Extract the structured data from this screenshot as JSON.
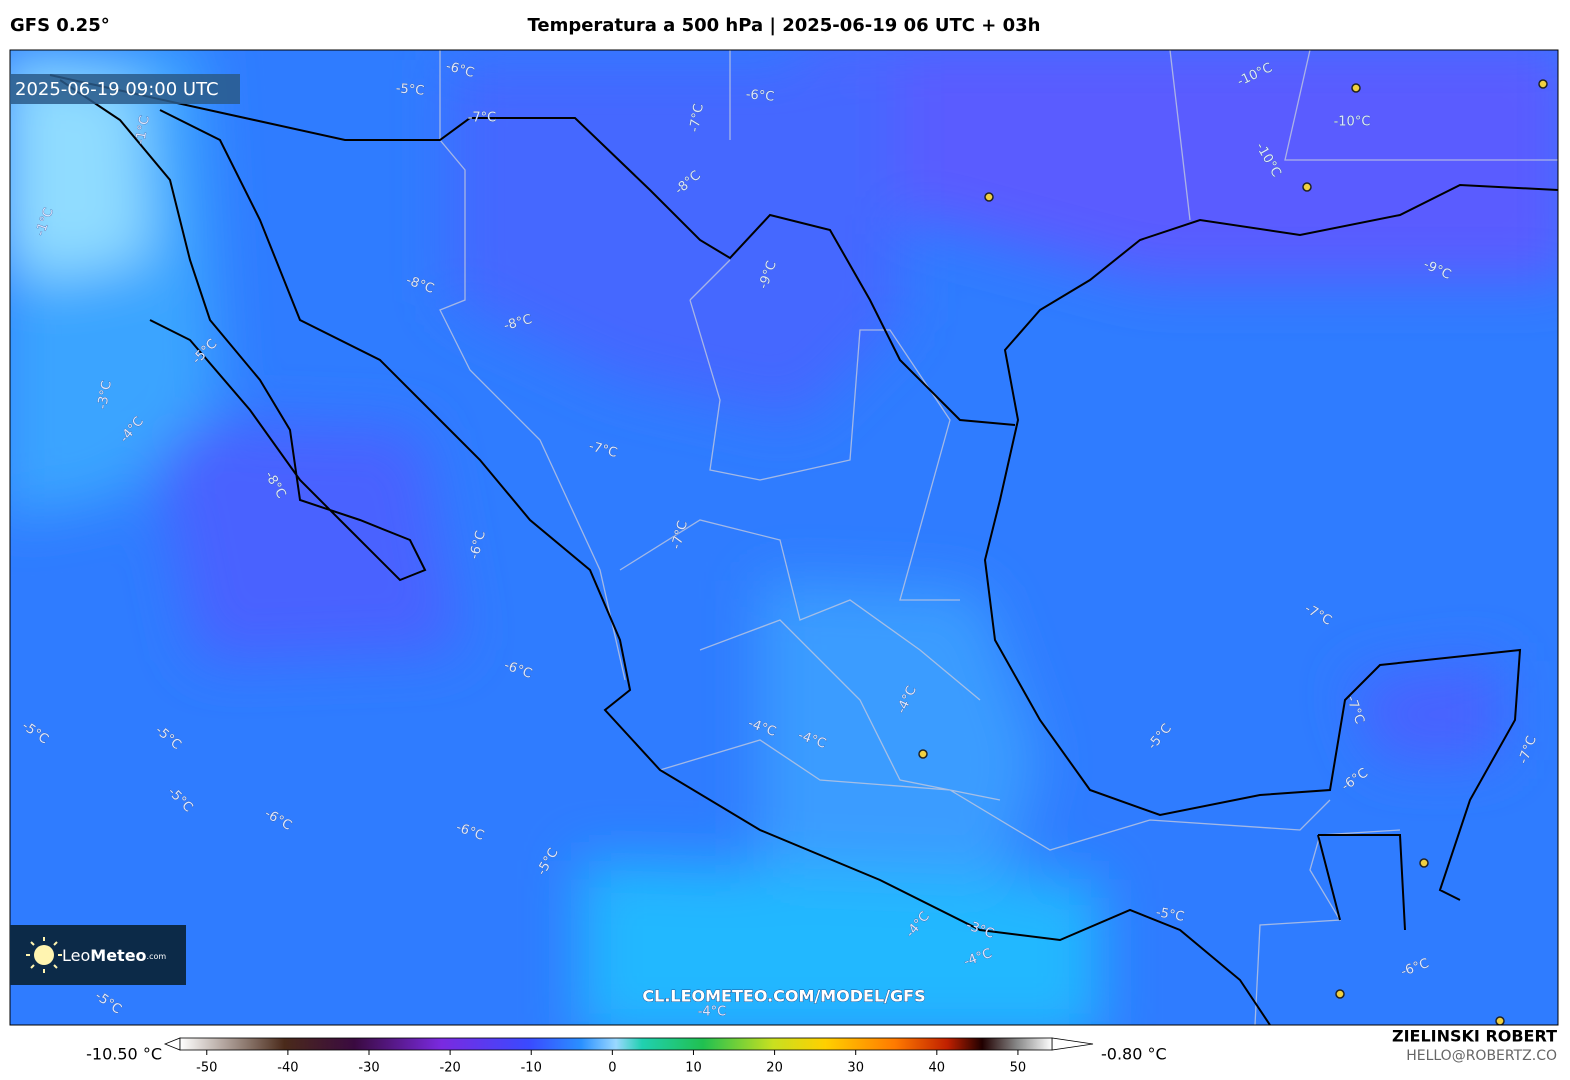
{
  "header": {
    "model": "GFS 0.25°",
    "title": "Temperatura a 500 hPa | 2025-06-19 06 UTC + 03h"
  },
  "map": {
    "valid_time": "2025-06-19 09:00 UTC",
    "contour_labels": [
      "-6°C",
      "-5°C",
      "-7°C",
      "-6°C",
      "-7°C",
      "-1°C",
      "-10°C",
      "-10°C",
      "-10°C",
      "-8°C",
      "-1°C",
      "-9°C",
      "-8°C",
      "-8°C",
      "-9°C",
      "-5°C",
      "-3°C",
      "-4°C",
      "-7°C",
      "-8°C",
      "-6°C",
      "-7°C",
      "-7°C",
      "-6°C",
      "-5°C",
      "-5°C",
      "-4°C",
      "-4°C",
      "-4°C",
      "-5°C",
      "-6°C",
      "-7°C",
      "-5°C",
      "-6°C",
      "-6°C",
      "-5°C",
      "-4°C",
      "-3°C",
      "-4°C",
      "-5°C",
      "-5°C",
      "-4°C",
      "-6°C",
      "-7°C"
    ],
    "watermark": "CL.LEOMETEO.COM/MODEL/GFS"
  },
  "logo": {
    "parts": [
      "Leo",
      "Meteo",
      ".com"
    ]
  },
  "colorbar": {
    "min_label": "-10.50 °C",
    "max_label": "-0.80 °C",
    "lim": [
      -53.3,
      54.2
    ],
    "ticks": [
      -50,
      -40,
      -30,
      -20,
      -10,
      0,
      10,
      20,
      30,
      40,
      50
    ]
  },
  "credit": {
    "author": "ZIELINSKI ROBERT",
    "email": "HELLO@ROBERTZ.CO"
  }
}
